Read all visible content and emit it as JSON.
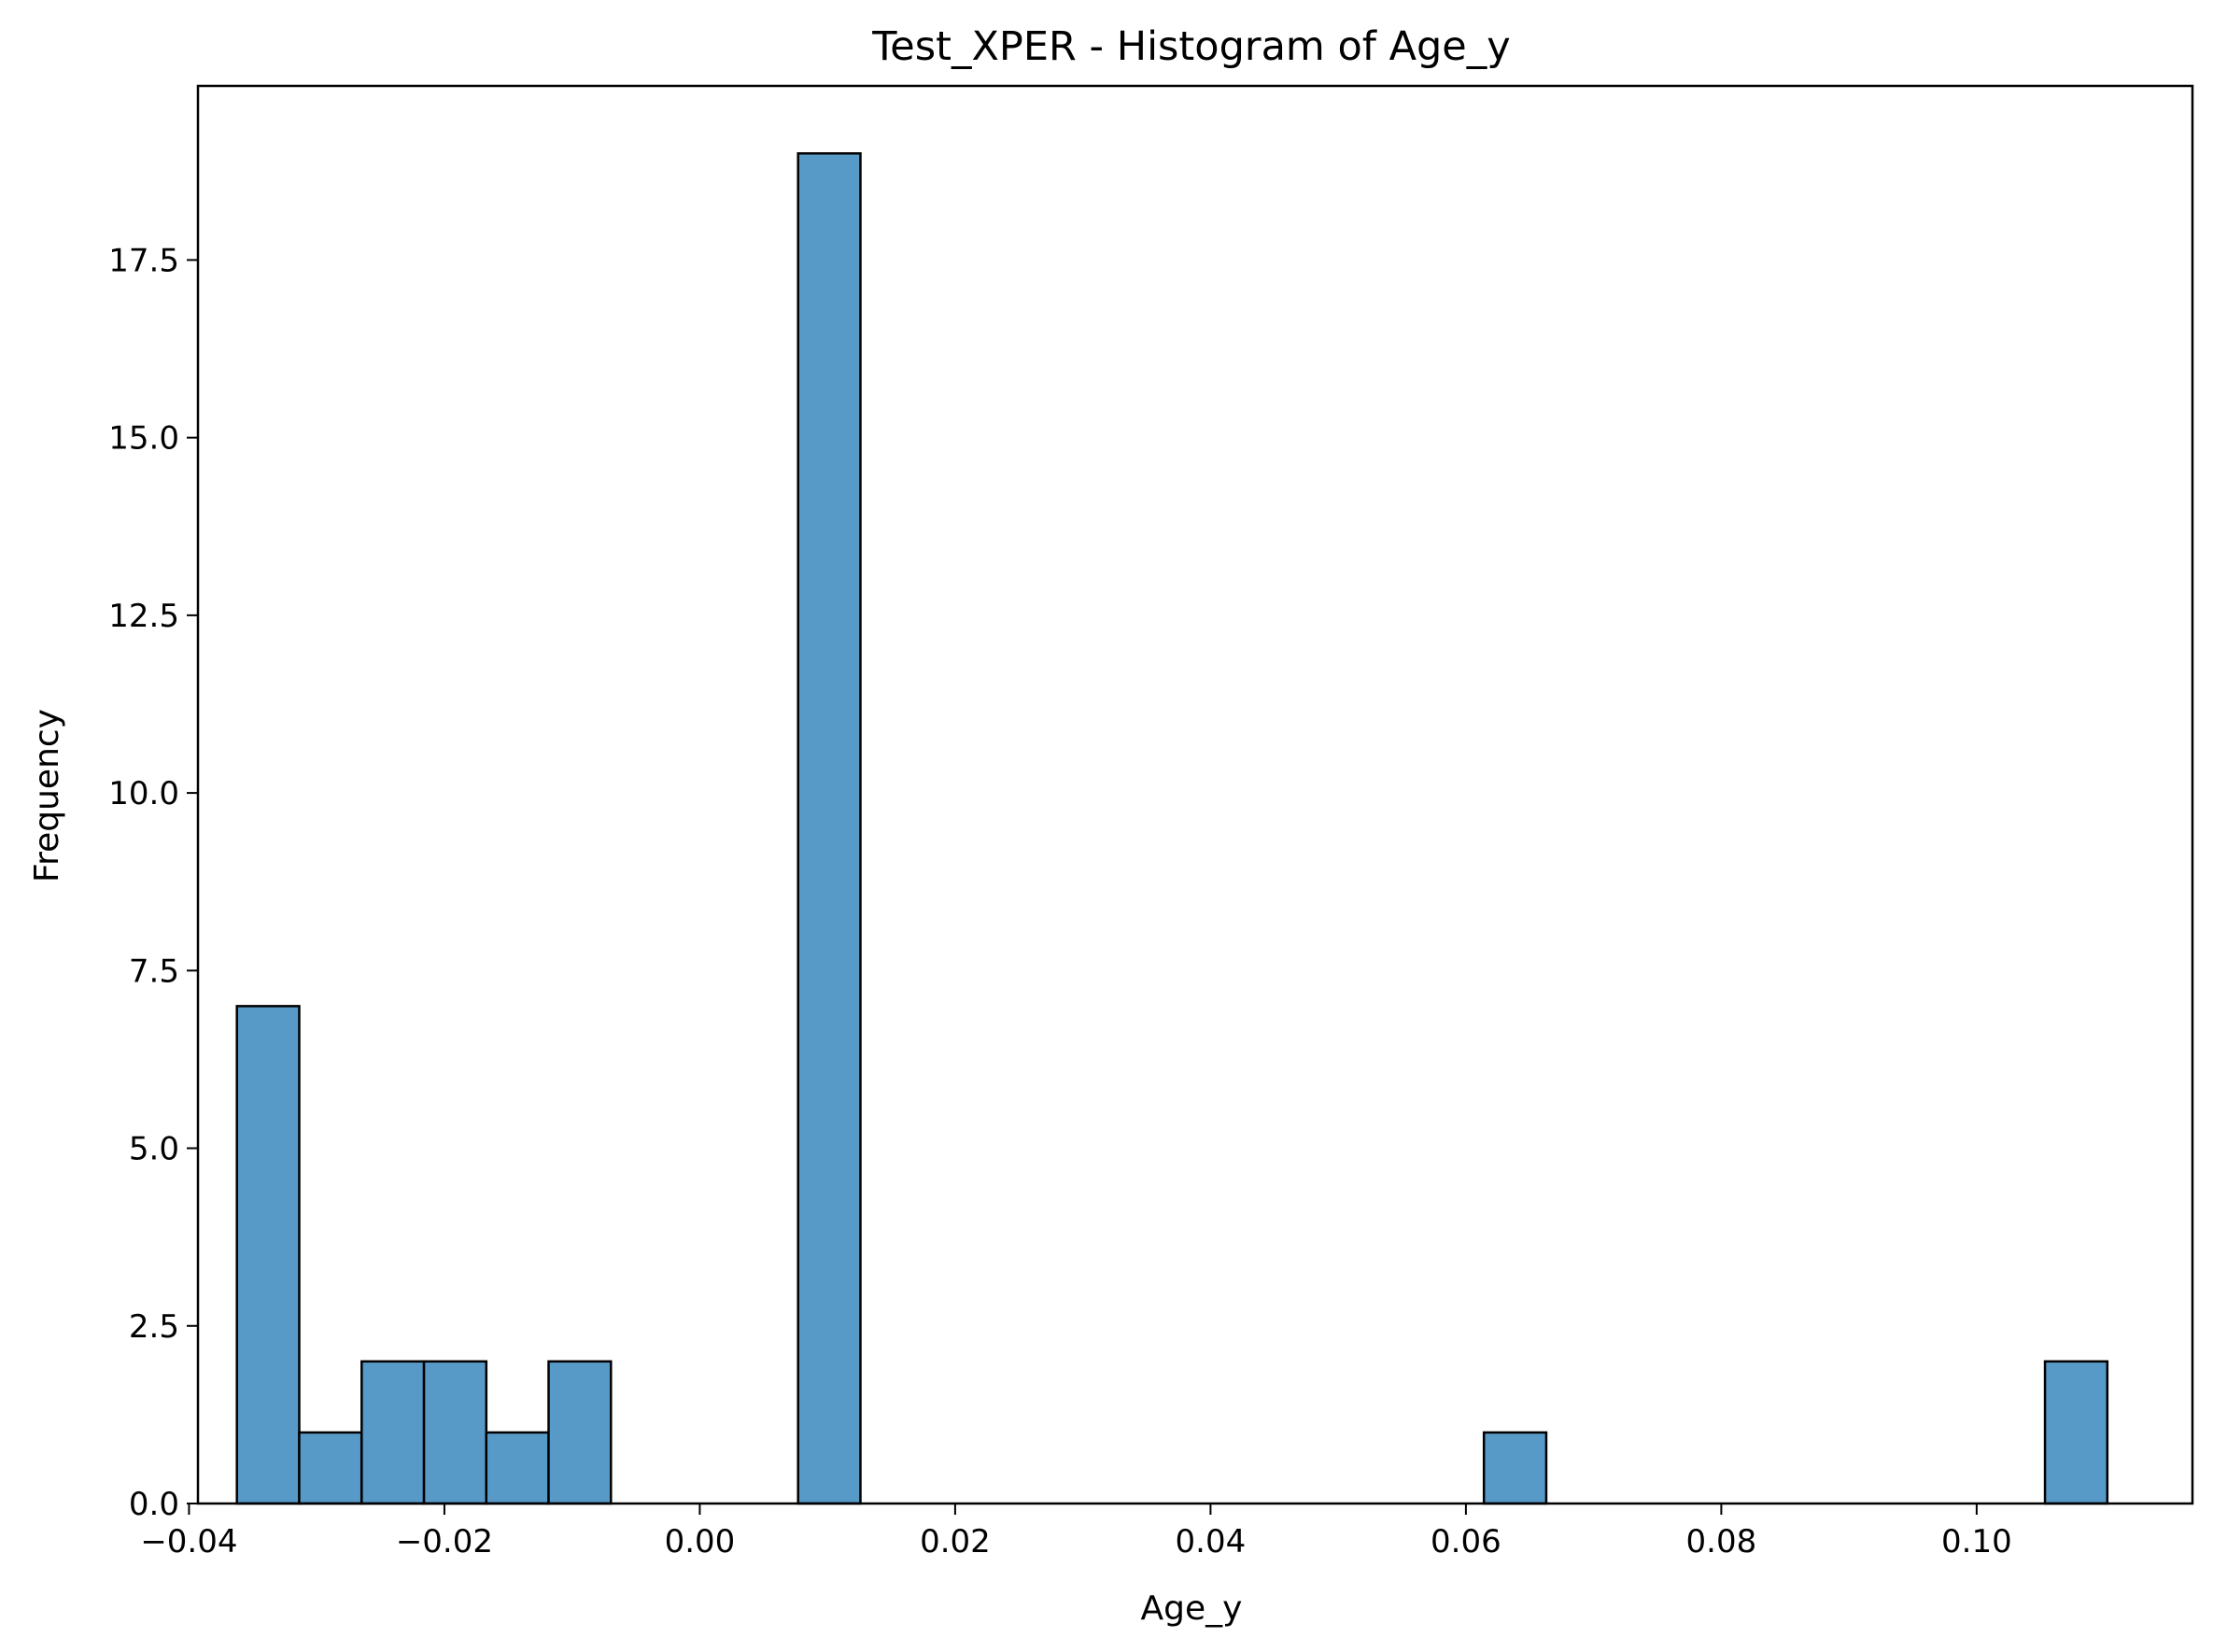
{
  "chart_data": {
    "type": "bar",
    "title": "Test_XPER - Histogram of Age_y",
    "xlabel": "Age_y",
    "ylabel": "Frequency",
    "xlim": [
      -0.0393,
      0.1169
    ],
    "ylim": [
      0,
      19.95
    ],
    "bar_color": "#5799c7",
    "edge_color": "#000000",
    "bin_width": 0.004883,
    "bins": [
      {
        "x0": -0.03625,
        "count": 7
      },
      {
        "x0": -0.03137,
        "count": 1
      },
      {
        "x0": -0.02648,
        "count": 2
      },
      {
        "x0": -0.0216,
        "count": 2
      },
      {
        "x0": -0.01672,
        "count": 1
      },
      {
        "x0": -0.01184,
        "count": 2
      },
      {
        "x0": -0.00695,
        "count": 0
      },
      {
        "x0": -0.00207,
        "count": 0
      },
      {
        "x0": 0.00281,
        "count": 0
      },
      {
        "x0": 0.0077,
        "count": 19
      },
      {
        "x0": 0.01258,
        "count": 0
      },
      {
        "x0": 0.01746,
        "count": 0
      },
      {
        "x0": 0.02235,
        "count": 0
      },
      {
        "x0": 0.02723,
        "count": 0
      },
      {
        "x0": 0.03211,
        "count": 0
      },
      {
        "x0": 0.03699,
        "count": 0
      },
      {
        "x0": 0.04188,
        "count": 0
      },
      {
        "x0": 0.04676,
        "count": 0
      },
      {
        "x0": 0.05164,
        "count": 0
      },
      {
        "x0": 0.05653,
        "count": 0
      },
      {
        "x0": 0.06141,
        "count": 1
      },
      {
        "x0": 0.06629,
        "count": 0
      },
      {
        "x0": 0.07117,
        "count": 0
      },
      {
        "x0": 0.07606,
        "count": 0
      },
      {
        "x0": 0.08094,
        "count": 0
      },
      {
        "x0": 0.08582,
        "count": 0
      },
      {
        "x0": 0.09071,
        "count": 0
      },
      {
        "x0": 0.09559,
        "count": 0
      },
      {
        "x0": 0.10047,
        "count": 0
      },
      {
        "x0": 0.10535,
        "count": 2
      }
    ],
    "x_ticks": [
      {
        "value": -0.04,
        "label": "−0.04"
      },
      {
        "value": -0.02,
        "label": "−0.02"
      },
      {
        "value": 0.0,
        "label": "0.00"
      },
      {
        "value": 0.02,
        "label": "0.02"
      },
      {
        "value": 0.04,
        "label": "0.04"
      },
      {
        "value": 0.06,
        "label": "0.06"
      },
      {
        "value": 0.08,
        "label": "0.08"
      },
      {
        "value": 0.1,
        "label": "0.10"
      }
    ],
    "y_ticks": [
      {
        "value": 0.0,
        "label": "0.0"
      },
      {
        "value": 2.5,
        "label": "2.5"
      },
      {
        "value": 5.0,
        "label": "5.0"
      },
      {
        "value": 7.5,
        "label": "7.5"
      },
      {
        "value": 10.0,
        "label": "10.0"
      },
      {
        "value": 12.5,
        "label": "12.5"
      },
      {
        "value": 15.0,
        "label": "15.0"
      },
      {
        "value": 17.5,
        "label": "17.5"
      }
    ],
    "grid": false,
    "legend": "none"
  }
}
